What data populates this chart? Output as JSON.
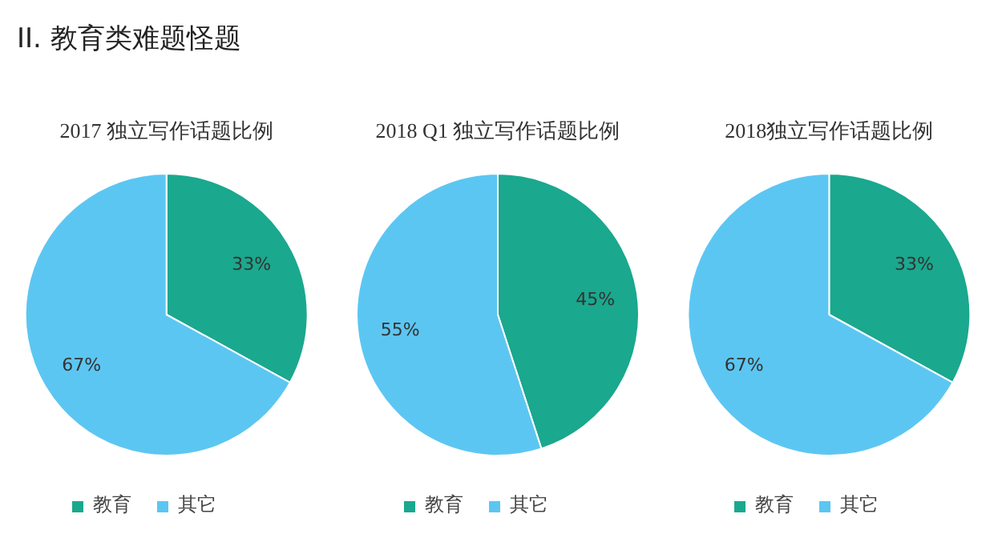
{
  "chart_data": [
    {
      "type": "pie",
      "title": "2017 独立写作话题比例",
      "annotations": [
        "II. 教育类难题怪题"
      ],
      "categories": [
        "教育",
        "其它"
      ],
      "values": [
        33,
        67
      ],
      "value_labels": [
        "33%",
        "67%"
      ],
      "colors": [
        "#1aa88e",
        "#5cc6f2"
      ],
      "legend": "bottom"
    },
    {
      "type": "pie",
      "title": "2018 Q1 独立写作话题比例",
      "categories": [
        "教育",
        "其它"
      ],
      "values": [
        45,
        55
      ],
      "value_labels": [
        "45%",
        "55%"
      ],
      "colors": [
        "#1aa88e",
        "#5cc6f2"
      ],
      "legend": "bottom"
    },
    {
      "type": "pie",
      "title": "2018独立写作话题比例",
      "categories": [
        "教育",
        "其它"
      ],
      "values": [
        33,
        67
      ],
      "value_labels": [
        "33%",
        "67%"
      ],
      "colors": [
        "#1aa88e",
        "#5cc6f2"
      ],
      "legend": "bottom"
    }
  ]
}
